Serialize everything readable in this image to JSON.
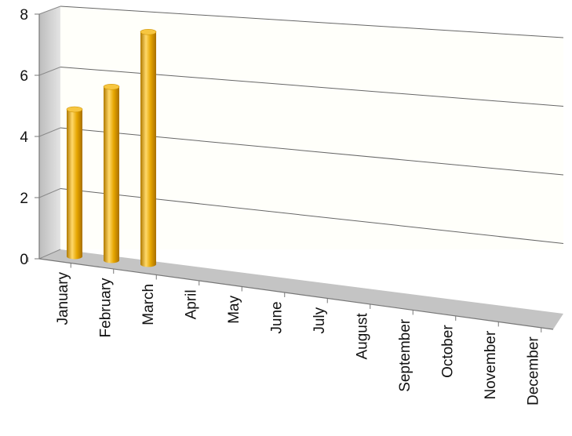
{
  "chart_data": {
    "type": "bar",
    "style": "3d-cylinder",
    "title": "",
    "xlabel": "",
    "ylabel": "",
    "categories": [
      "January",
      "February",
      "March",
      "April",
      "May",
      "June",
      "July",
      "August",
      "September",
      "October",
      "November",
      "December"
    ],
    "values": [
      5,
      5.9,
      7.9,
      0,
      0,
      0,
      0,
      0,
      0,
      0,
      0,
      0
    ],
    "ylim": [
      0,
      8
    ],
    "yticks": [
      "0",
      "2",
      "4",
      "6",
      "8"
    ],
    "grid": true,
    "legend": "none",
    "colors": {
      "bar": "#e6a600",
      "bar_highlight": "#ffd86a",
      "bar_shadow": "#b07a00",
      "back_wall": "#fffffa",
      "side_wall": "#c9c9c9",
      "floor": "#bdbdbd",
      "gridline": "#666666"
    }
  }
}
